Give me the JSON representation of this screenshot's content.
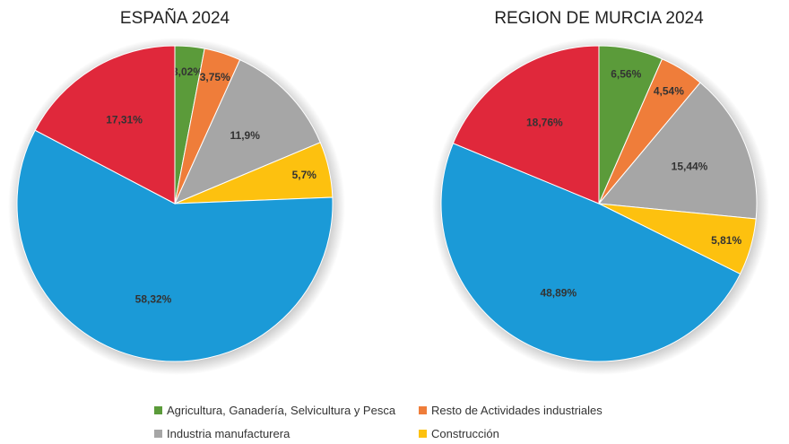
{
  "chart_data": [
    {
      "type": "pie",
      "title": "ESPAÑA 2024",
      "start": "top",
      "direction": "clockwise",
      "slices": [
        {
          "category": "Agricultura, Ganadería, Selvicultura y Pesca",
          "value": 3.02,
          "label": "3,02%",
          "color": "#5b9b3a"
        },
        {
          "category": "Resto de Actividades industriales",
          "value": 3.75,
          "label": "3,75%",
          "color": "#ef7d3a"
        },
        {
          "category": "Industria manufacturera",
          "value": 11.9,
          "label": "11,9%",
          "color": "#a6a6a6"
        },
        {
          "category": "Construcción",
          "value": 5.7,
          "label": "5,7%",
          "color": "#fdc10f"
        },
        {
          "category": "",
          "value": 58.32,
          "label": "58,32%",
          "color": "#1b9ad7"
        },
        {
          "category": "",
          "value": 17.31,
          "label": "17,31%",
          "color": "#e0283b"
        }
      ]
    },
    {
      "type": "pie",
      "title": "REGION DE MURCIA 2024",
      "start": "top",
      "direction": "clockwise",
      "slices": [
        {
          "category": "Agricultura, Ganadería, Selvicultura y Pesca",
          "value": 6.56,
          "label": "6,56%",
          "color": "#5b9b3a"
        },
        {
          "category": "Resto de Actividades industriales",
          "value": 4.54,
          "label": "4,54%",
          "color": "#ef7d3a"
        },
        {
          "category": "Industria manufacturera",
          "value": 15.44,
          "label": "15,44%",
          "color": "#a6a6a6"
        },
        {
          "category": "Construcción",
          "value": 5.81,
          "label": "5,81%",
          "color": "#fdc10f"
        },
        {
          "category": "",
          "value": 48.89,
          "label": "48,89%",
          "color": "#1b9ad7"
        },
        {
          "category": "",
          "value": 18.76,
          "label": "18,76%",
          "color": "#e0283b"
        }
      ]
    }
  ],
  "legend": {
    "position": "bottom",
    "items": [
      {
        "label": "Agricultura, Ganadería, Selvicultura y Pesca",
        "color": "#5b9b3a"
      },
      {
        "label": "Resto de Actividades industriales",
        "color": "#ef7d3a"
      },
      {
        "label": "Industria manufacturera",
        "color": "#a6a6a6"
      },
      {
        "label": "Construcción",
        "color": "#fdc10f"
      }
    ]
  }
}
